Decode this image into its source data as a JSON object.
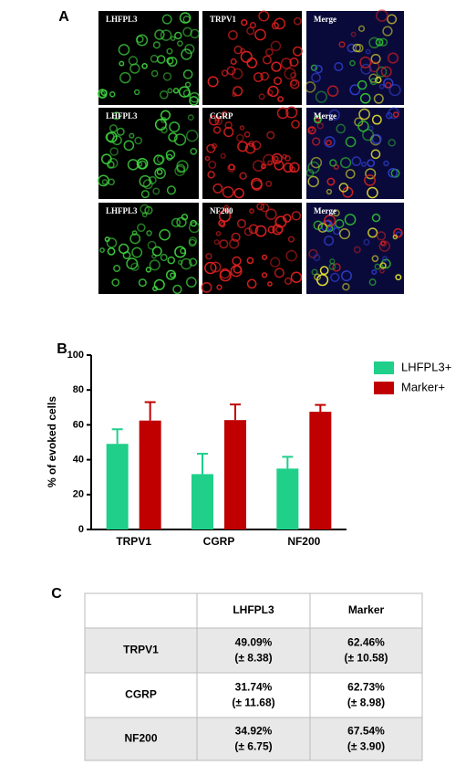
{
  "panel_labels": [
    "A",
    "B",
    "C"
  ],
  "panel_a": {
    "rows": [
      [
        "LHFPL3",
        "TRPV1",
        "Merge"
      ],
      [
        "LHFPL3",
        "CGRP",
        "Merge"
      ],
      [
        "LHFPL3",
        "NF200",
        "Merge"
      ]
    ]
  },
  "chart_data": {
    "type": "bar",
    "y_label": "% of evoked cells",
    "categories": [
      "TRPV1",
      "CGRP",
      "NF200"
    ],
    "series": [
      {
        "name": "LHFPL3+",
        "color": "#1fcf8a",
        "values": [
          49.09,
          31.74,
          34.92
        ],
        "errors": [
          8.38,
          11.68,
          6.75
        ]
      },
      {
        "name": "Marker+",
        "color": "#c00000",
        "values": [
          62.46,
          62.73,
          67.54
        ],
        "errors": [
          10.58,
          8.98,
          3.9
        ]
      }
    ],
    "ylim": [
      0,
      100
    ],
    "yticks": [
      0,
      20,
      40,
      60,
      80,
      100
    ],
    "legend": "right"
  },
  "table": {
    "header": [
      "LHFPL3",
      "Marker"
    ],
    "rows": [
      {
        "label": "TRPV1",
        "cells": [
          [
            "49.09%",
            "(± 8.38)"
          ],
          [
            "62.46%",
            "(± 10.58)"
          ]
        ]
      },
      {
        "label": "CGRP",
        "cells": [
          [
            "31.74%",
            "(± 11.68)"
          ],
          [
            "62.73%",
            "(± 8.98)"
          ]
        ]
      },
      {
        "label": "NF200",
        "cells": [
          [
            "34.92%",
            "(± 6.75)"
          ],
          [
            "67.54%",
            "(± 3.90)"
          ]
        ]
      }
    ]
  }
}
